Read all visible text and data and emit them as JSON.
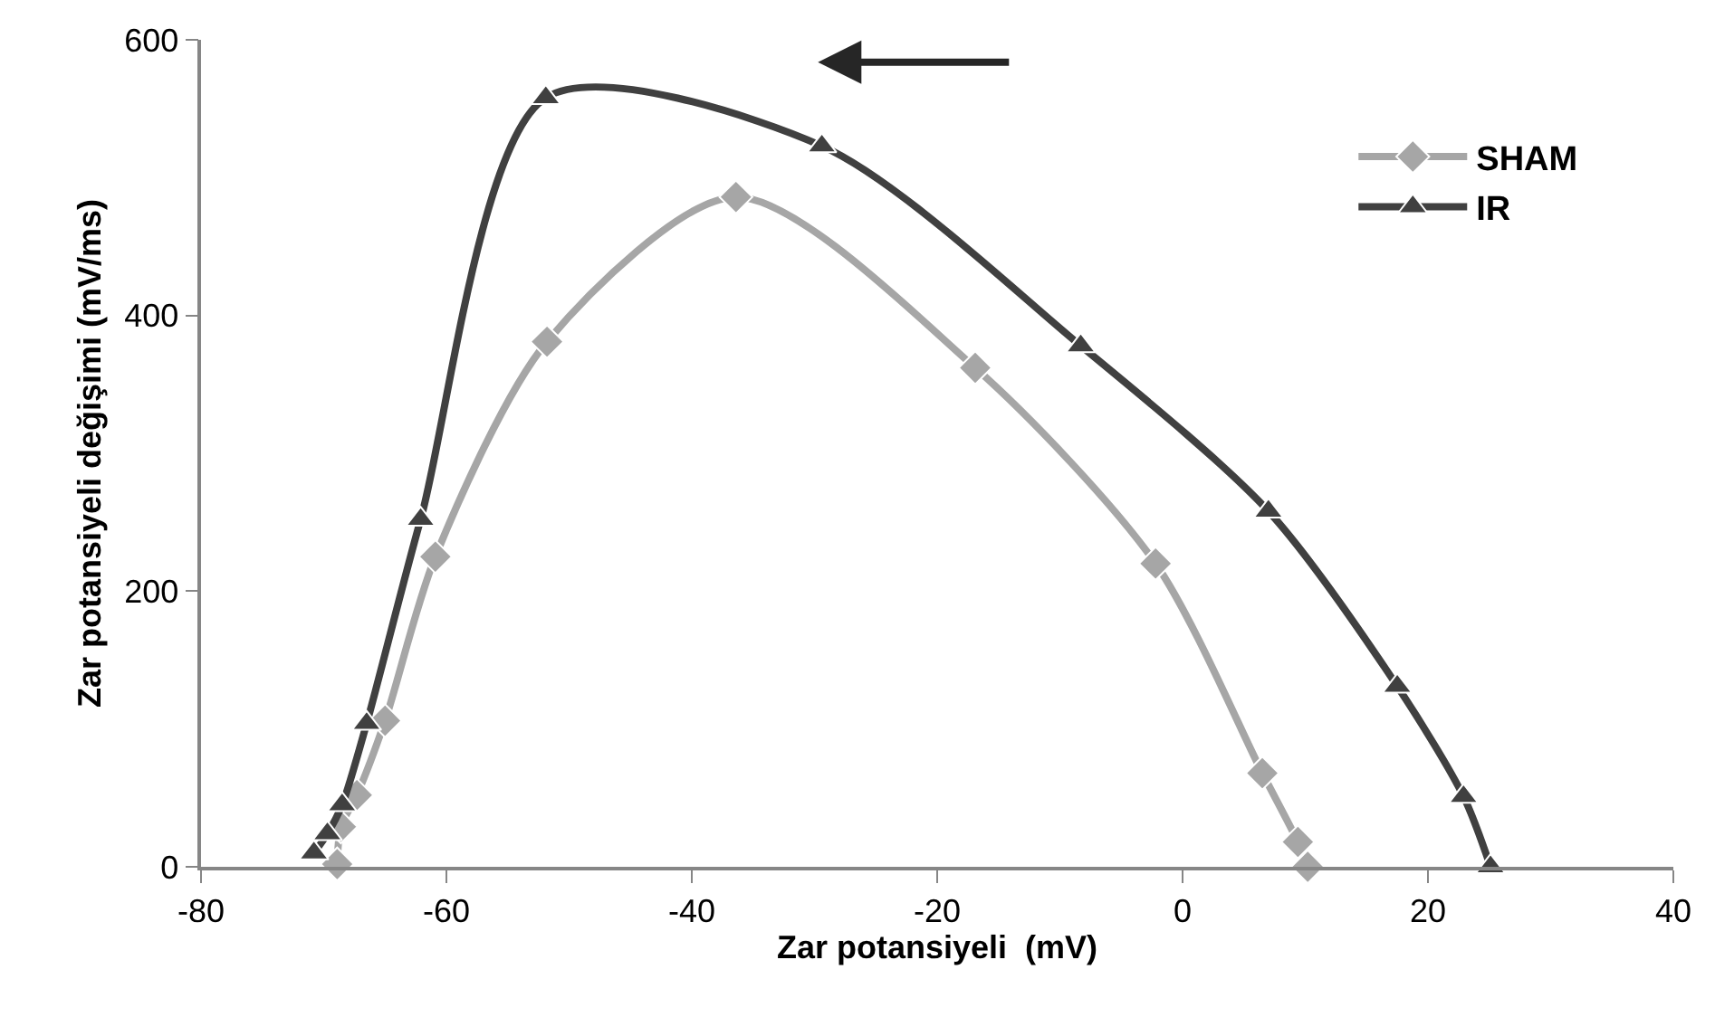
{
  "chart_data": {
    "type": "line",
    "xlabel": "Zar potansiyeli  (mV)",
    "ylabel": "Zar potansiyeli değişimi (mV/ms)",
    "xlim": [
      -80,
      40
    ],
    "xticks": [
      -80,
      -60,
      -40,
      -20,
      0,
      20,
      40
    ],
    "ylim": [
      0,
      600
    ],
    "yticks": [
      0,
      200,
      400,
      600
    ],
    "legend": "top right",
    "series": [
      {
        "name": "SHAM",
        "color": "#a6a6a6",
        "marker": "diamond",
        "x": [
          -68.9,
          -68.6,
          -67.3,
          -65.0,
          -60.9,
          -51.8,
          -36.4,
          -16.9,
          -2.2,
          6.5,
          9.4,
          10.2
        ],
        "values": [
          2,
          29,
          52,
          106,
          225,
          381,
          486,
          362,
          220,
          68,
          18,
          0
        ]
      },
      {
        "name": "IR",
        "color": "#404040",
        "marker": "triangle",
        "x": [
          -70.8,
          -69.7,
          -68.5,
          -66.5,
          -62.1,
          -51.9,
          -29.4,
          -8.3,
          7.0,
          17.5,
          22.9,
          25.1
        ],
        "values": [
          10,
          24,
          45,
          104,
          252,
          558,
          523,
          378,
          258,
          131,
          51,
          0
        ]
      }
    ]
  }
}
